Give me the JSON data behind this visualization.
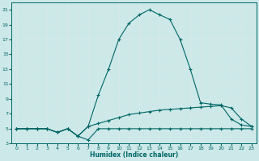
{
  "xlabel": "Humidex (Indice chaleur)",
  "bg_color": "#cce8e8",
  "line_color": "#006666",
  "grid_color": "#b8d8d8",
  "xlim": [
    -0.5,
    23.5
  ],
  "ylim": [
    3,
    22
  ],
  "xticks": [
    0,
    1,
    2,
    3,
    4,
    5,
    6,
    7,
    8,
    9,
    10,
    11,
    12,
    13,
    14,
    15,
    16,
    17,
    18,
    19,
    20,
    21,
    22,
    23
  ],
  "yticks": [
    3,
    5,
    7,
    9,
    11,
    13,
    15,
    17,
    19,
    21
  ],
  "line1_x": [
    0,
    1,
    2,
    3,
    4,
    5,
    6,
    7,
    8,
    9,
    10,
    11,
    12,
    13,
    14,
    15,
    16,
    17,
    18,
    19,
    20,
    21,
    22,
    23
  ],
  "line1_y": [
    5,
    5,
    5,
    5,
    4.5,
    5,
    4.0,
    3.5,
    5,
    5,
    5,
    5,
    5,
    5,
    5,
    5,
    5,
    5,
    5,
    5,
    5,
    5,
    5,
    5
  ],
  "line2_x": [
    0,
    1,
    2,
    3,
    4,
    5,
    6,
    7,
    8,
    9,
    10,
    11,
    12,
    13,
    14,
    15,
    16,
    17,
    18,
    19,
    20,
    21,
    22,
    23
  ],
  "line2_y": [
    5,
    5,
    5,
    5,
    4.5,
    5,
    4.0,
    5.3,
    5.7,
    6.1,
    6.5,
    6.9,
    7.1,
    7.3,
    7.5,
    7.6,
    7.7,
    7.8,
    7.9,
    8.0,
    8.1,
    7.8,
    6.3,
    5.3
  ],
  "line3_x": [
    0,
    1,
    2,
    3,
    4,
    5,
    6,
    7,
    8,
    9,
    10,
    11,
    12,
    13,
    14,
    15,
    16,
    17,
    18,
    19,
    20,
    21,
    22,
    23
  ],
  "line3_y": [
    5,
    5,
    5,
    5,
    4.5,
    5,
    4.0,
    5.3,
    9.5,
    13.0,
    17.0,
    19.2,
    20.3,
    21.0,
    20.3,
    19.7,
    17.0,
    13.0,
    8.5,
    8.3,
    8.2,
    6.3,
    5.5,
    5.3
  ]
}
